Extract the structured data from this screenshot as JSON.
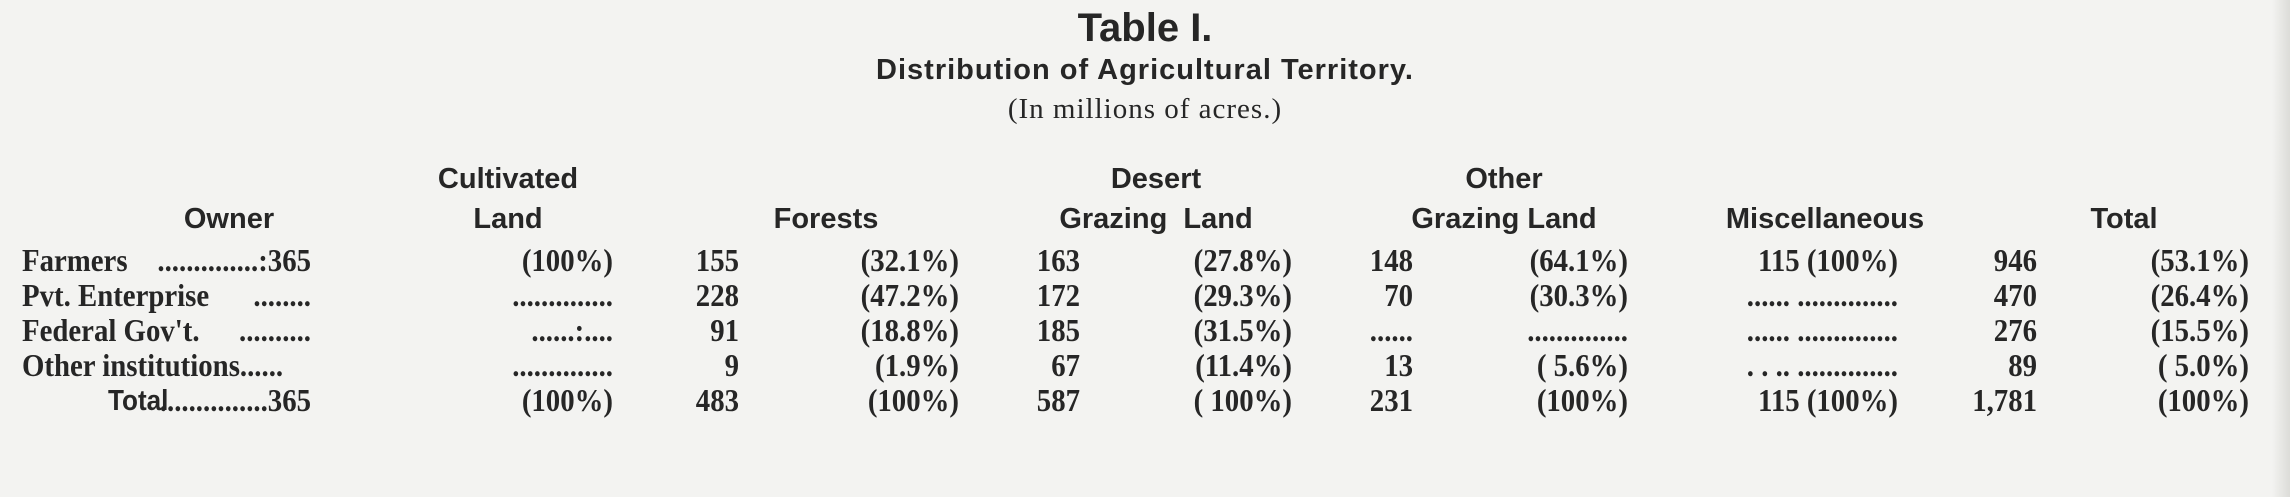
{
  "title": "Table I.",
  "subtitle": "Distribution of Agricultural Territory.",
  "units": "(In millions of acres.)",
  "headers": [
    {
      "top": "",
      "bottom": "Owner"
    },
    {
      "top": "Cultivated",
      "bottom": "Land"
    },
    {
      "top": "",
      "bottom": "Forests"
    },
    {
      "top": "Desert",
      "bottom": "Grazing  Land"
    },
    {
      "top": "Other",
      "bottom": "Grazing Land"
    },
    {
      "top": "",
      "bottom": "Miscellaneous"
    },
    {
      "top": "",
      "bottom": "Total"
    }
  ],
  "rows": [
    {
      "owner": "Farmers",
      "cult": "..............:365",
      "cult_pct": "(100%)",
      "forests": "155",
      "forests_pct": "(32.1%)",
      "desert": "163",
      "desert_pct": "(27.8%)",
      "other": "148",
      "other_pct": "(64.1%)",
      "misc": "115 (100%)",
      "total": "946",
      "total_pct": "(53.1%)"
    },
    {
      "owner": "Pvt. Enterprise",
      "cult": "........",
      "cult_pct": "..............",
      "forests": "228",
      "forests_pct": "(47.2%)",
      "desert": "172",
      "desert_pct": "(29.3%)",
      "other": "70",
      "other_pct": "(30.3%)",
      "misc": "...... ..............",
      "total": "470",
      "total_pct": "(26.4%)"
    },
    {
      "owner": "Federal Gov't.",
      "cult": "..........",
      "cult_pct": "......:....",
      "forests": "91",
      "forests_pct": "(18.8%)",
      "desert": "185",
      "desert_pct": "(31.5%)",
      "other": "......",
      "other_pct": "..............",
      "misc": "...... ..............",
      "total": "276",
      "total_pct": "(15.5%)"
    },
    {
      "owner": "Other institutions......",
      "cult": "",
      "cult_pct": "..............",
      "forests": "9",
      "forests_pct": "(1.9%)",
      "desert": "67",
      "desert_pct": "(11.4%)",
      "other": "13",
      "other_pct": "( 5.6%)",
      "misc": ". . .. ..............",
      "total": "89",
      "total_pct": "( 5.0%)"
    },
    {
      "owner": "Total",
      "cult": "...............365",
      "cult_pct": "(100%)",
      "forests": "483",
      "forests_pct": "(100%)",
      "desert": "587",
      "desert_pct": "( 100%)",
      "other": "231",
      "other_pct": "(100%)",
      "misc": "115 (100%)",
      "total": "1,781",
      "total_pct": "(100%)"
    }
  ]
}
